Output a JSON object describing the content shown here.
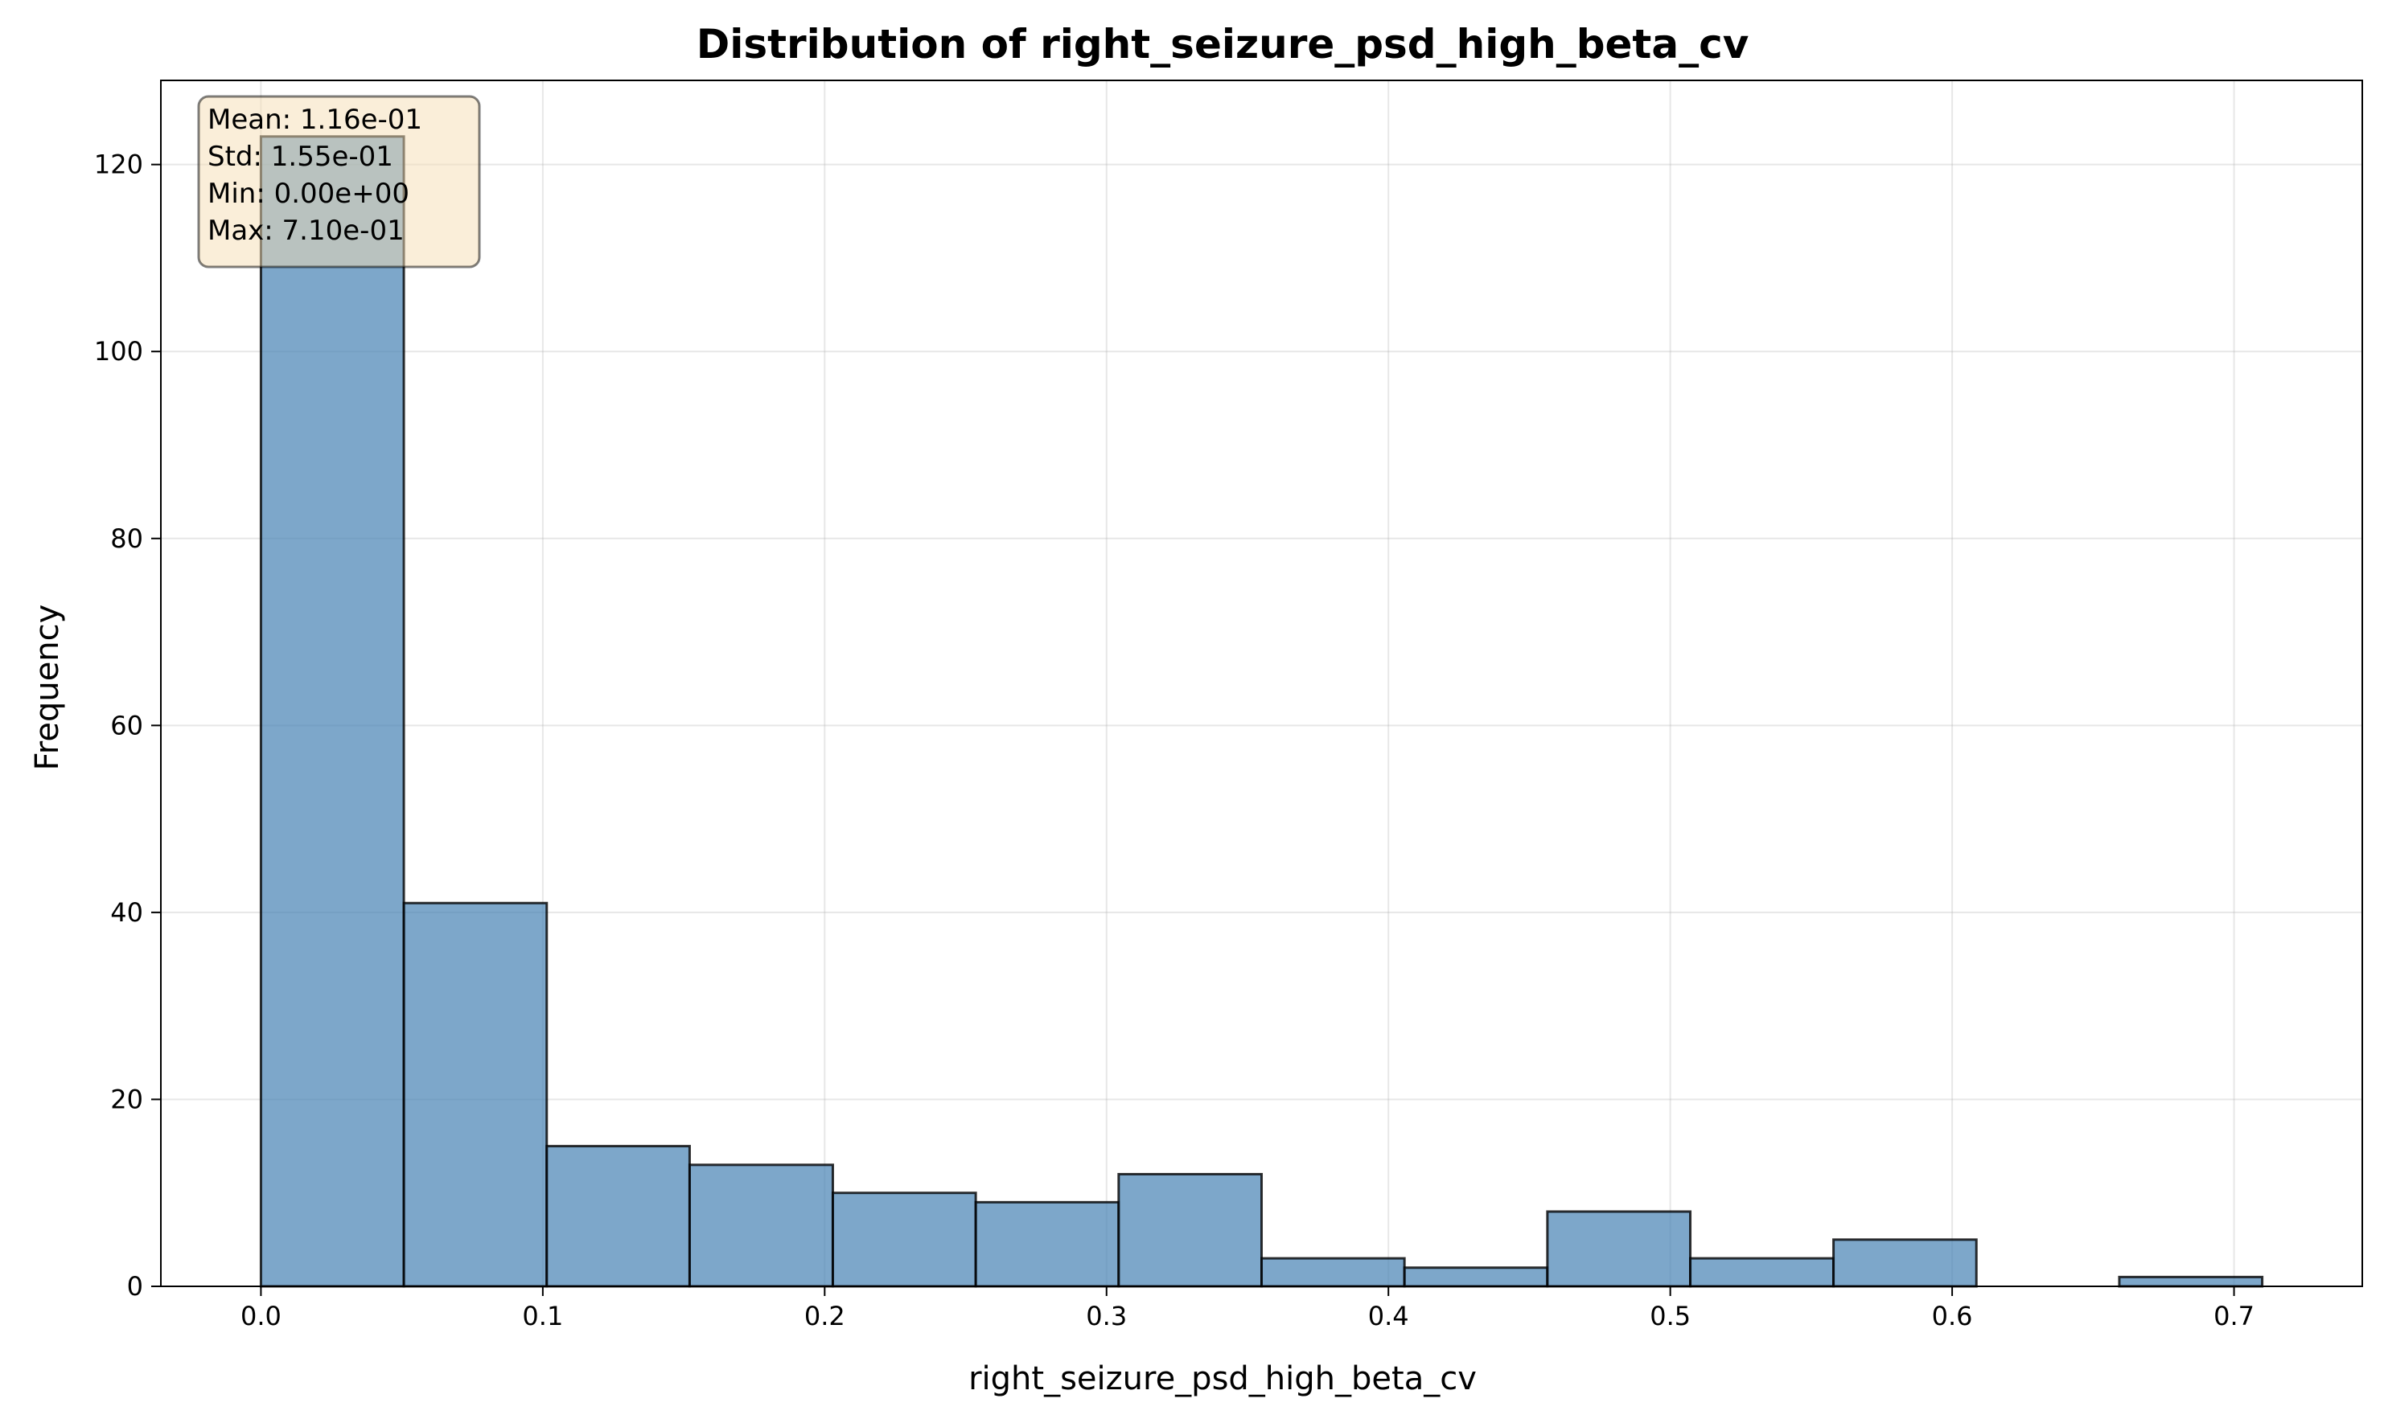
{
  "chart_data": {
    "type": "bar",
    "title": "Distribution of right_seizure_psd_high_beta_cv",
    "xlabel": "right_seizure_psd_high_beta_cv",
    "ylabel": "Frequency",
    "xlim": [
      -0.0355,
      0.7455
    ],
    "ylim": [
      0,
      129
    ],
    "bin_edges": [
      0.0,
      0.0507,
      0.1014,
      0.1521,
      0.2029,
      0.2536,
      0.3043,
      0.355,
      0.4057,
      0.4564,
      0.5071,
      0.5579,
      0.6086,
      0.6593,
      0.71
    ],
    "values": [
      123,
      41,
      15,
      13,
      10,
      9,
      12,
      3,
      2,
      8,
      3,
      5,
      0,
      1
    ],
    "x_ticks": [
      0.0,
      0.1,
      0.2,
      0.3,
      0.4,
      0.5,
      0.6,
      0.7
    ],
    "x_tick_labels": [
      "0.0",
      "0.1",
      "0.2",
      "0.3",
      "0.4",
      "0.5",
      "0.6",
      "0.7"
    ],
    "y_ticks": [
      0,
      20,
      40,
      60,
      80,
      100,
      120
    ],
    "y_tick_labels": [
      "0",
      "20",
      "40",
      "60",
      "80",
      "100",
      "120"
    ],
    "grid": true,
    "bar_color": "#4682b4",
    "stats_box": {
      "placement": "top-left",
      "background": "#f5deb3",
      "lines": [
        "Mean: 1.16e-01",
        "Std: 1.55e-01",
        "Min: 0.00e+00",
        "Max: 7.10e-01"
      ]
    }
  }
}
